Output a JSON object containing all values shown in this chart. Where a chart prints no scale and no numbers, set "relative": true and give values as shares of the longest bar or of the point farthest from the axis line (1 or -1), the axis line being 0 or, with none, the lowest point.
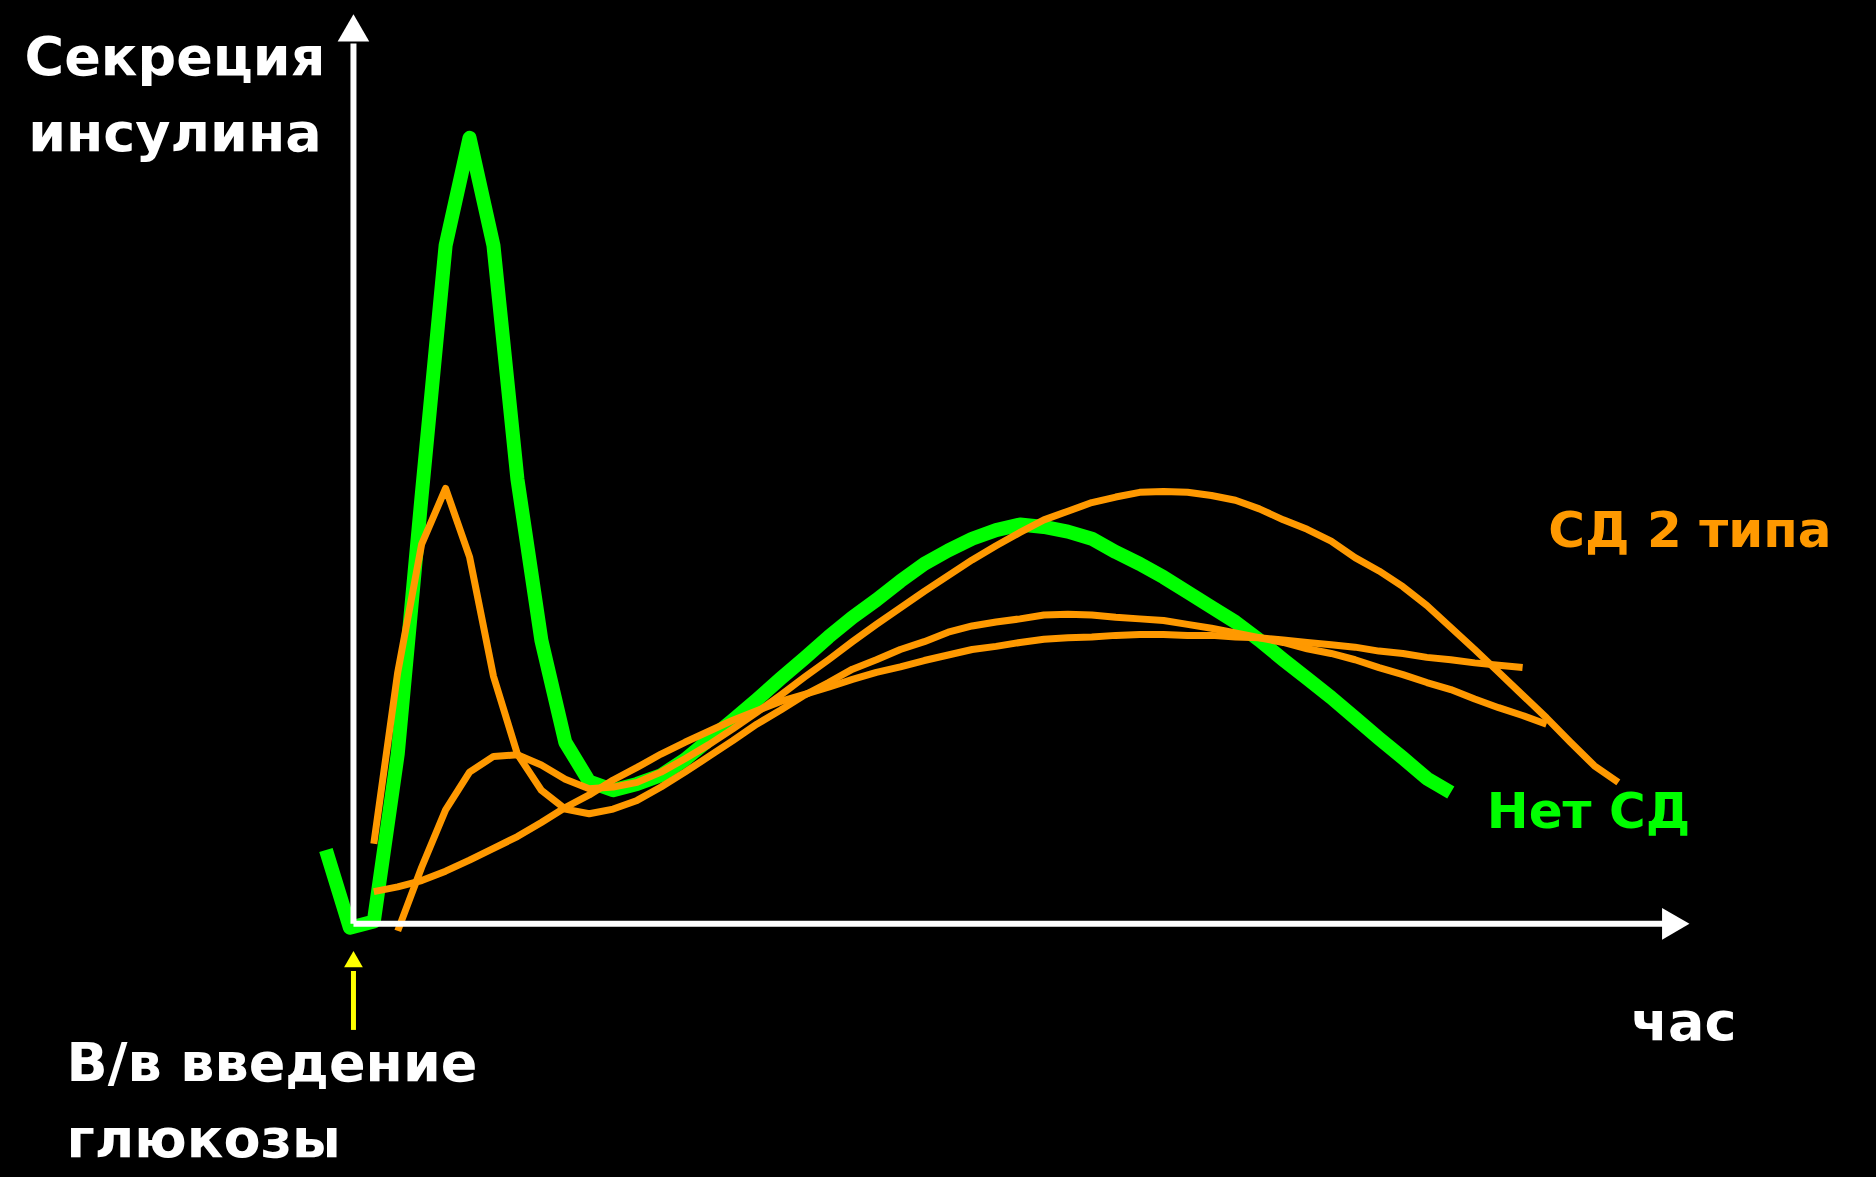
{
  "chart_data": {
    "type": "line",
    "relative": true,
    "tick_labels": false,
    "xlabel": "час",
    "ylabel": "Секреция\nинсулина",
    "annotations": [
      "В/в введение\nглюкозы"
    ],
    "categories": [
      null,
      null,
      null,
      null,
      null,
      null,
      null,
      null,
      null,
      null,
      null,
      null,
      null,
      null,
      null,
      null,
      null,
      null,
      null,
      null,
      null,
      null,
      null,
      null,
      null,
      null,
      null,
      null,
      null,
      null,
      null,
      null,
      null,
      null,
      null,
      null,
      null,
      null,
      null,
      null,
      null,
      null,
      null,
      null,
      null,
      null,
      null,
      null,
      null,
      null,
      null,
      null,
      null,
      null,
      null
    ],
    "series": [
      {
        "name": "Нет СД",
        "color": "#00ff00",
        "values": [
          0.094,
          -0.005,
          0.003,
          0.216,
          0.545,
          0.863,
          1.0,
          0.863,
          0.566,
          0.361,
          0.231,
          0.181,
          0.17,
          0.178,
          0.189,
          0.209,
          0.234,
          0.259,
          0.285,
          0.312,
          0.338,
          0.365,
          0.39,
          0.412,
          0.436,
          0.458,
          0.475,
          0.49,
          0.501,
          0.508,
          0.505,
          0.499,
          0.49,
          0.473,
          0.458,
          0.441,
          0.422,
          0.403,
          0.384,
          0.361,
          0.336,
          0.312,
          0.288,
          0.262,
          0.236,
          0.211,
          0.185,
          0.167,
          null,
          null,
          null,
          null,
          null,
          null,
          null
        ]
      },
      {
        "color": "#ff9900",
        "values": [
          null,
          null,
          0.102,
          0.32,
          0.483,
          0.554,
          0.467,
          0.315,
          0.216,
          0.17,
          0.146,
          0.14,
          0.146,
          0.157,
          0.174,
          0.193,
          0.213,
          0.233,
          0.254,
          0.272,
          0.291,
          0.307,
          0.324,
          0.336,
          0.349,
          0.359,
          0.371,
          0.379,
          0.384,
          0.388,
          0.393,
          0.394,
          0.393,
          0.39,
          0.388,
          0.386,
          0.381,
          0.376,
          0.37,
          0.364,
          0.358,
          0.35,
          0.344,
          0.336,
          0.326,
          0.317,
          0.307,
          0.298,
          0.286,
          0.275,
          0.265,
          0.254,
          null,
          null,
          null
        ]
      },
      {
        "name": "СД 2 типа",
        "color": "#ff9900",
        "values": [
          null,
          null,
          null,
          -0.009,
          0.072,
          0.145,
          0.193,
          0.213,
          0.215,
          0.202,
          0.184,
          0.172,
          0.174,
          0.18,
          0.193,
          0.21,
          0.228,
          0.248,
          0.269,
          0.291,
          0.314,
          0.336,
          0.359,
          0.381,
          0.402,
          0.423,
          0.443,
          0.463,
          0.481,
          0.498,
          0.514,
          0.525,
          0.536,
          0.543,
          0.549,
          0.55,
          0.549,
          0.545,
          0.539,
          0.528,
          0.514,
          0.502,
          0.487,
          0.466,
          0.449,
          0.429,
          0.405,
          0.377,
          0.349,
          0.32,
          0.291,
          0.262,
          0.231,
          0.201,
          0.18
        ]
      },
      {
        "color": "#ff9900",
        "values": [
          null,
          null,
          0.041,
          0.047,
          0.055,
          0.067,
          0.081,
          0.096,
          0.111,
          0.129,
          0.148,
          0.164,
          0.183,
          0.199,
          0.216,
          0.231,
          0.245,
          0.259,
          0.271,
          0.283,
          0.292,
          0.301,
          0.311,
          0.32,
          0.327,
          0.335,
          0.342,
          0.349,
          0.353,
          0.358,
          0.362,
          0.364,
          0.365,
          0.367,
          0.368,
          0.368,
          0.367,
          0.367,
          0.365,
          0.364,
          0.361,
          0.358,
          0.355,
          0.352,
          0.347,
          0.344,
          0.339,
          0.336,
          0.332,
          0.329,
          0.326,
          null,
          null,
          null,
          null
        ]
      }
    ]
  }
}
